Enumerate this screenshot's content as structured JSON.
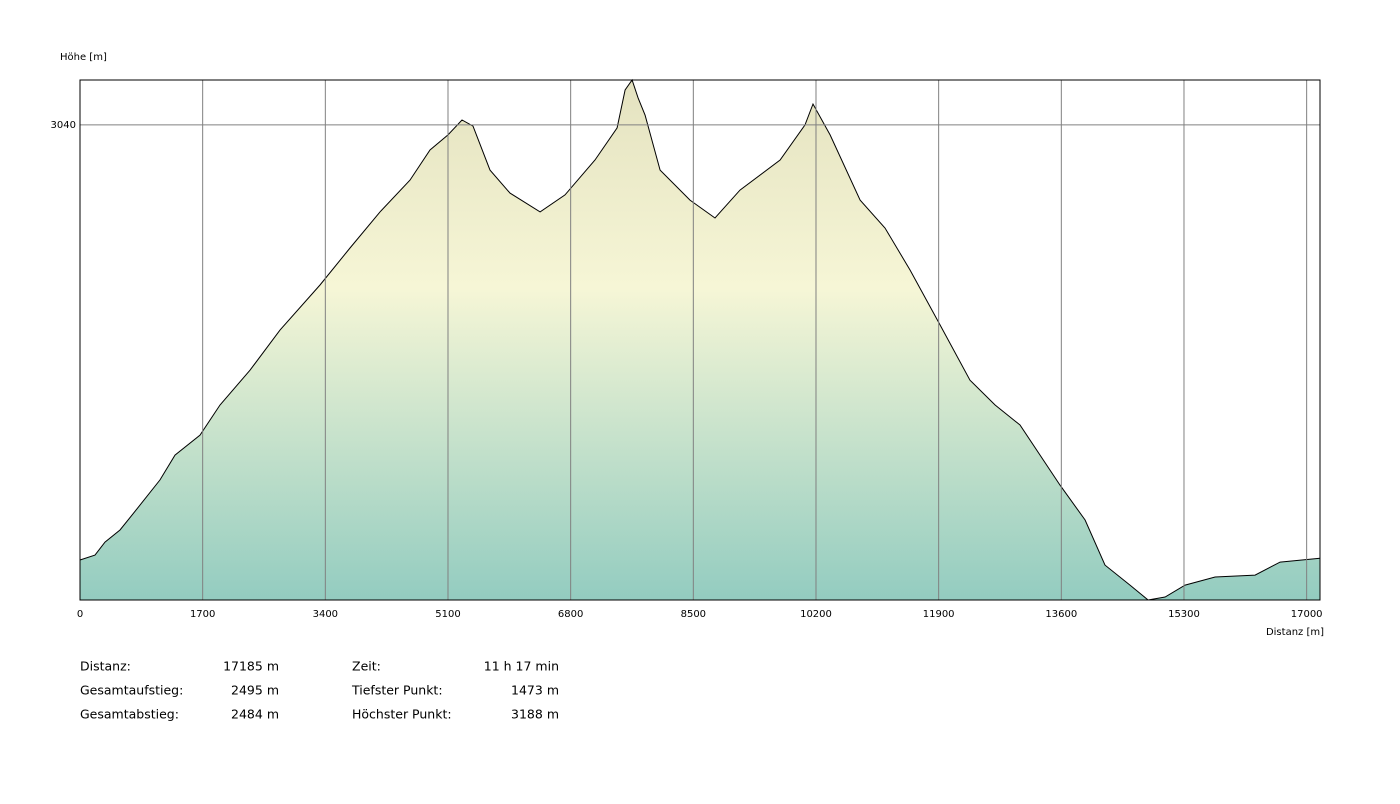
{
  "chart_data": {
    "type": "area",
    "y_label": "Höhe [m]",
    "x_label": "Distanz [m]",
    "x": [
      0,
      208,
      346,
      554,
      832,
      1109,
      1317,
      1663,
      1940,
      2356,
      2772,
      3326,
      3742,
      4158,
      4574,
      4851,
      5100,
      5294,
      5447,
      5682,
      5960,
      6376,
      6722,
      7138,
      7443,
      7554,
      7651,
      7734,
      7831,
      8039,
      8454,
      8801,
      9147,
      9702,
      10048,
      10159,
      10395,
      10811,
      11157,
      11504,
      11920,
      12335,
      12682,
      13028,
      13582,
      13929,
      14206,
      14552,
      14802,
      15038,
      15315,
      15731,
      16285,
      16632,
      17185
    ],
    "values": [
      1605,
      1621,
      1664,
      1704,
      1786,
      1869,
      1951,
      2017,
      2116,
      2231,
      2363,
      2512,
      2634,
      2753,
      2858,
      2957,
      3007,
      3056,
      3036,
      2891,
      2815,
      2753,
      2809,
      2924,
      3030,
      3155,
      3188,
      3129,
      3072,
      2891,
      2792,
      2733,
      2825,
      2924,
      3040,
      3109,
      3007,
      2792,
      2700,
      2561,
      2380,
      2198,
      2116,
      2050,
      1852,
      1737,
      1588,
      1522,
      1473,
      1483,
      1522,
      1549,
      1555,
      1598,
      1611
    ],
    "xlim": [
      0,
      17185
    ],
    "ylim": [
      1473,
      3188
    ],
    "xticks": [
      0,
      1700,
      3400,
      5100,
      6800,
      8500,
      10200,
      11900,
      13600,
      15300,
      17000
    ],
    "yticks": [
      3040
    ],
    "grid": true,
    "stats": {
      "rows": [
        [
          "Distanz:",
          "17185 m",
          "Zeit:",
          "11 h 17 min"
        ],
        [
          "Gesamtaufstieg:",
          "2495 m",
          "Tiefster Punkt:",
          "1473 m"
        ],
        [
          "Gesamtabstieg:",
          "2484 m",
          "Höchster Punkt:",
          "3188 m"
        ]
      ]
    }
  }
}
